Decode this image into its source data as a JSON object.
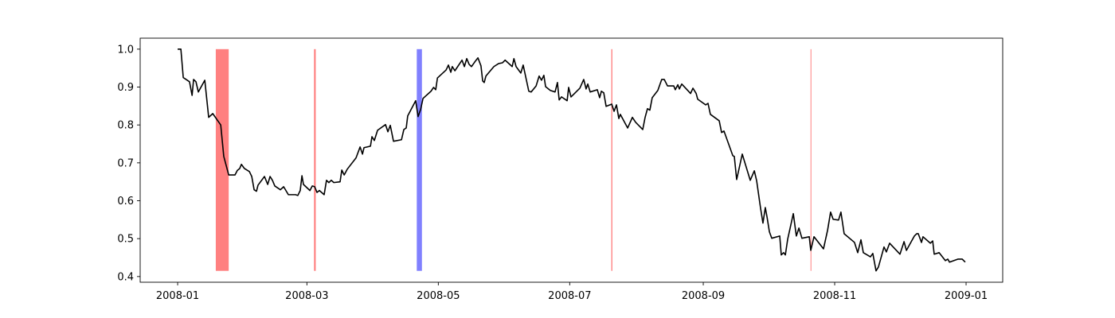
{
  "chart_data": {
    "type": "line",
    "series": [
      {
        "color": "#000000",
        "x": [
          0,
          1.5,
          2.6,
          5.5,
          6.7,
          7.4,
          8.5,
          9.6,
          12.6,
          14.4,
          16.3,
          20,
          21.4,
          22.2,
          23.7,
          26.6,
          27.7,
          28.8,
          29.6,
          31,
          33.3,
          34.4,
          35.5,
          36.6,
          37.3,
          40.3,
          41.8,
          42.9,
          44,
          45.1,
          47.7,
          49.2,
          51.4,
          54.7,
          55.8,
          56.9,
          57.7,
          58.4,
          61.4,
          62.5,
          63.6,
          64.7,
          65.8,
          68,
          69.1,
          70.2,
          71.3,
          72.5,
          75.4,
          76.2,
          77.3,
          78.7,
          82.8,
          84.7,
          85.8,
          86.5,
          89.5,
          90.2,
          91.3,
          92.8,
          96.5,
          97.6,
          98.7,
          100.2,
          103.9,
          105,
          106.1,
          106.8,
          110.5,
          111.6,
          112.8,
          113.9,
          117.6,
          118.8,
          119.8,
          120.6,
          124.6,
          125.7,
          126.8,
          127.5,
          128.7,
          132,
          133.1,
          134.2,
          135.3,
          136.4,
          137.9,
          139.4,
          140.8,
          141.6,
          142.3,
          143.1,
          146.8,
          149,
          150.8,
          152,
          155.3,
          156.1,
          157.1,
          159.3,
          160.4,
          163,
          164.1,
          166.4,
          167.8,
          168.9,
          170,
          170.8,
          173,
          175.2,
          176.3,
          177.1,
          178.2,
          180.8,
          181.5,
          182.6,
          186.7,
          188.5,
          189.6,
          190.4,
          191.5,
          194.8,
          195.9,
          196.7,
          197.8,
          198.9,
          201.5,
          202.6,
          203.7,
          204.8,
          205.5,
          208.9,
          211.1,
          212.6,
          215.9,
          217,
          218.1,
          219.2,
          220.3,
          222.9,
          224.7,
          225.9,
          227.4,
          230.3,
          231,
          232.2,
          232.9,
          234,
          238.1,
          239.2,
          240.7,
          241.4,
          245.1,
          246.2,
          247.3,
          251.4,
          252.5,
          253.6,
          257.7,
          258.4,
          259.5,
          262.1,
          265.8,
          267.7,
          268.8,
          270.6,
          271.7,
          272.8,
          273.6,
          274.7,
          275.8,
          279.5,
          280.2,
          281.3,
          282.1,
          283.2,
          285.8,
          287.2,
          288.4,
          289.8,
          293.2,
          293.9,
          295.4,
          299.8,
          301.7,
          303.1,
          304.3,
          306.8,
          307.9,
          309.4,
          314.2,
          315.7,
          317.2,
          318.3,
          321.6,
          322.7,
          324.2,
          325.3,
          327.9,
          329,
          330.5,
          335.3,
          337.2,
          338.3,
          342,
          343.1,
          343.8,
          345.3,
          346,
          349.4,
          350.5,
          351.2,
          353.5,
          356.4,
          357.5,
          358.3,
          362.3,
          364.2,
          365.6
        ],
        "y": [
          1.0,
          1.0,
          0.925,
          0.914,
          0.878,
          0.92,
          0.914,
          0.887,
          0.918,
          0.82,
          0.83,
          0.8,
          0.717,
          0.7,
          0.668,
          0.668,
          0.68,
          0.685,
          0.696,
          0.685,
          0.677,
          0.664,
          0.629,
          0.625,
          0.641,
          0.664,
          0.643,
          0.664,
          0.654,
          0.639,
          0.629,
          0.637,
          0.616,
          0.616,
          0.614,
          0.627,
          0.666,
          0.643,
          0.627,
          0.639,
          0.637,
          0.622,
          0.627,
          0.616,
          0.654,
          0.648,
          0.654,
          0.648,
          0.65,
          0.681,
          0.668,
          0.683,
          0.713,
          0.742,
          0.723,
          0.74,
          0.744,
          0.769,
          0.759,
          0.786,
          0.801,
          0.782,
          0.799,
          0.757,
          0.761,
          0.788,
          0.792,
          0.824,
          0.864,
          0.822,
          0.841,
          0.87,
          0.889,
          0.899,
          0.893,
          0.924,
          0.945,
          0.958,
          0.939,
          0.954,
          0.943,
          0.971,
          0.954,
          0.975,
          0.96,
          0.954,
          0.966,
          0.977,
          0.956,
          0.916,
          0.912,
          0.929,
          0.954,
          0.962,
          0.964,
          0.971,
          0.954,
          0.975,
          0.954,
          0.937,
          0.958,
          0.889,
          0.887,
          0.903,
          0.929,
          0.918,
          0.931,
          0.901,
          0.891,
          0.887,
          0.912,
          0.866,
          0.874,
          0.864,
          0.899,
          0.874,
          0.897,
          0.92,
          0.895,
          0.908,
          0.887,
          0.893,
          0.872,
          0.889,
          0.885,
          0.849,
          0.855,
          0.836,
          0.853,
          0.817,
          0.828,
          0.792,
          0.82,
          0.807,
          0.788,
          0.82,
          0.843,
          0.839,
          0.872,
          0.891,
          0.92,
          0.92,
          0.903,
          0.903,
          0.893,
          0.906,
          0.895,
          0.908,
          0.883,
          0.897,
          0.883,
          0.868,
          0.853,
          0.857,
          0.828,
          0.811,
          0.78,
          0.784,
          0.719,
          0.717,
          0.656,
          0.723,
          0.654,
          0.679,
          0.652,
          0.58,
          0.541,
          0.582,
          0.557,
          0.518,
          0.501,
          0.507,
          0.457,
          0.463,
          0.457,
          0.499,
          0.566,
          0.507,
          0.528,
          0.501,
          0.505,
          0.469,
          0.505,
          0.473,
          0.522,
          0.57,
          0.551,
          0.549,
          0.57,
          0.513,
          0.49,
          0.463,
          0.497,
          0.463,
          0.452,
          0.461,
          0.415,
          0.425,
          0.478,
          0.465,
          0.488,
          0.459,
          0.492,
          0.469,
          0.507,
          0.513,
          0.513,
          0.49,
          0.505,
          0.488,
          0.494,
          0.459,
          0.463,
          0.442,
          0.446,
          0.438,
          0.446,
          0.446,
          0.438
        ]
      }
    ],
    "vlines": {
      "y": [
        0.415,
        1.0
      ],
      "spans": [
        {
          "x": [
            17.7,
            23.7
          ],
          "color": "#ff8080"
        },
        {
          "x": [
            63.3,
            64.1
          ],
          "color": "#ff8080"
        },
        {
          "x": [
            111.0,
            113.4
          ],
          "color": "#8080ff"
        },
        {
          "x": [
            201.3,
            201.8
          ],
          "color": "#ff8080"
        },
        {
          "x": [
            293.8,
            294.1
          ],
          "color": "#ff8080"
        }
      ]
    },
    "xlim": [
      -17.4,
      383.0
    ],
    "xticks": [
      {
        "value": 0,
        "label": "2008-01"
      },
      {
        "value": 60,
        "label": "2008-03"
      },
      {
        "value": 121,
        "label": "2008-05"
      },
      {
        "value": 182,
        "label": "2008-07"
      },
      {
        "value": 244,
        "label": "2008-09"
      },
      {
        "value": 305,
        "label": "2008-11"
      },
      {
        "value": 366,
        "label": "2009-01"
      }
    ],
    "ylim": [
      0.385,
      1.029
    ],
    "yticks": [
      0.4,
      0.5,
      0.6,
      0.7,
      0.8,
      0.9,
      {
        "value": 1,
        "label": "1.0"
      }
    ]
  }
}
